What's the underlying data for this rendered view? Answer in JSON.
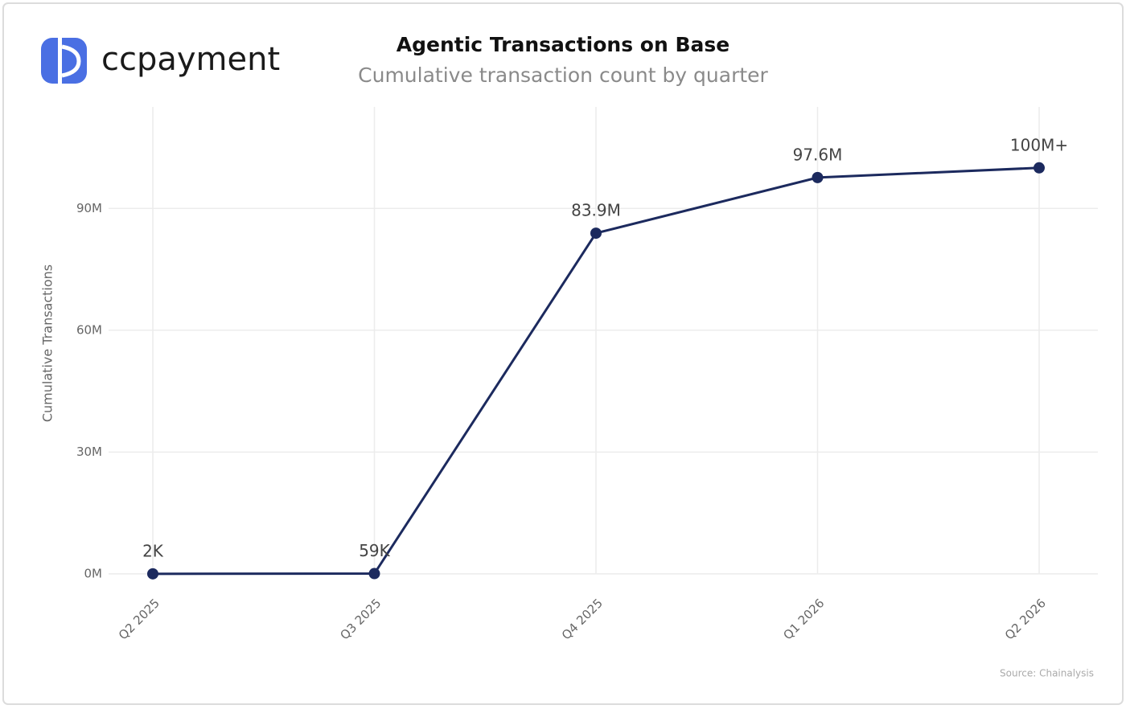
{
  "brand": "ccpayment",
  "chart_data": {
    "type": "line",
    "title": "Agentic Transactions on Base",
    "subtitle": "Cumulative transaction count by quarter",
    "y_label": "Cumulative Transactions",
    "source": "Source: Chainalysis",
    "categories": [
      "Q2 2025",
      "Q3 2025",
      "Q4 2025",
      "Q1 2026",
      "Q2 2026"
    ],
    "values": [
      2000,
      59000,
      83900000,
      97600000,
      100000000
    ],
    "value_labels": [
      "2K",
      "59K",
      "83.9M",
      "97.6M",
      "100M+"
    ],
    "color": "#1c2a5e",
    "ylim": [
      -3000000,
      115000000
    ],
    "yticks": [
      {
        "value": 0,
        "label": "0M"
      },
      {
        "value": 30000000,
        "label": "30M"
      },
      {
        "value": 60000000,
        "label": "60M"
      },
      {
        "value": 90000000,
        "label": "90M"
      }
    ],
    "grid": true
  }
}
